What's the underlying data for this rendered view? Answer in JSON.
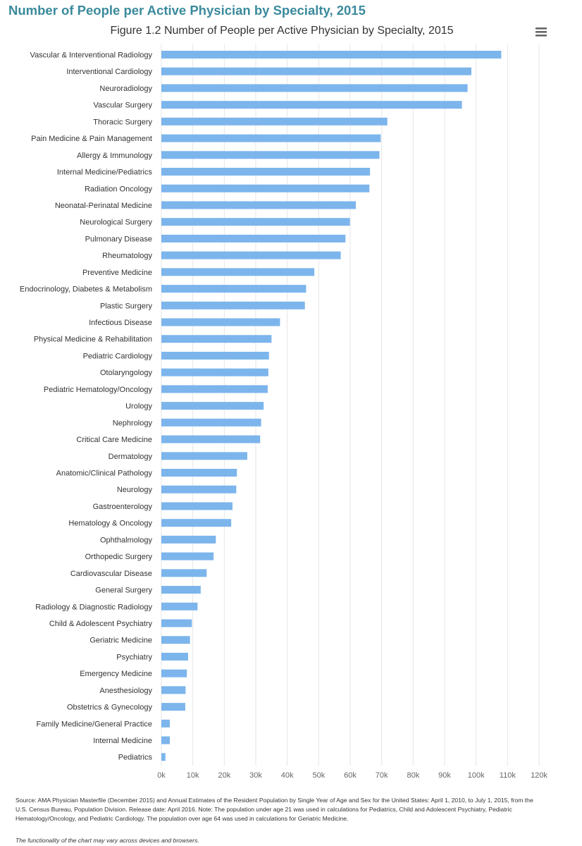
{
  "page": {
    "heading": "Number of People per Active Physician by Specialty, 2015",
    "source_lines": [
      "Source: AMA Physician Masterfile (December 2015) and Annual Estimates of the Resident Population by Single Year of Age and Sex for the United States: April 1, 2010, to July 1, 2015, from the",
      "U.S. Census Bureau, Population Division. Release date: April 2016. Note: The population under age 21 was used in calculations for Pediatrics, Child and Adolescent Psychiatry, Pediatric",
      "Hematology/Oncology, and Pediatric Cardiology. The population over age 64 was used in calculations for Geriatric Medicine."
    ],
    "disclaimer": "The functionality of the chart may vary across devices and browsers.",
    "menu_icon": "hamburger-menu-icon"
  },
  "chart_data": {
    "type": "bar",
    "orientation": "horizontal",
    "title": "Figure 1.2 Number of People per Active Physician by Specialty, 2015",
    "xlim": [
      0,
      120000
    ],
    "ticks": [
      0,
      10000,
      20000,
      30000,
      40000,
      50000,
      60000,
      70000,
      80000,
      90000,
      100000,
      110000,
      120000
    ],
    "tick_labels": [
      "0k",
      "10k",
      "20k",
      "30k",
      "40k",
      "50k",
      "60k",
      "70k",
      "80k",
      "90k",
      "100k",
      "110k",
      "120k"
    ],
    "grid": true,
    "bar_color": "#7cb5ec",
    "grid_color": "#e6e6e6",
    "categories": [
      "Vascular & Interventional Radiology",
      "Interventional Cardiology",
      "Neuroradiology",
      "Vascular Surgery",
      "Thoracic Surgery",
      "Pain Medicine & Pain Management",
      "Allergy & Immunology",
      "Internal Medicine/Pediatrics",
      "Radiation Oncology",
      "Neonatal-Perinatal Medicine",
      "Neurological Surgery",
      "Pulmonary Disease",
      "Rheumatology",
      "Preventive Medicine",
      "Endocrinology, Diabetes & Metabolism",
      "Plastic Surgery",
      "Infectious Disease",
      "Physical Medicine & Rehabilitation",
      "Pediatric Cardiology",
      "Otolaryngology",
      "Pediatric Hematology/Oncology",
      "Urology",
      "Nephrology",
      "Critical Care Medicine",
      "Dermatology",
      "Anatomic/Clinical Pathology",
      "Neurology",
      "Gastroenterology",
      "Hematology & Oncology",
      "Ophthalmology",
      "Orthopedic Surgery",
      "Cardiovascular Disease",
      "General Surgery",
      "Radiology & Diagnostic Radiology",
      "Child & Adolescent Psychiatry",
      "Geriatric Medicine",
      "Psychiatry",
      "Emergency Medicine",
      "Anesthesiology",
      "Obstetrics & Gynecology",
      "Family Medicine/General Practice",
      "Internal Medicine",
      "Pediatrics"
    ],
    "values": [
      108000,
      98500,
      97300,
      95500,
      71800,
      69700,
      69300,
      66300,
      66100,
      61800,
      59900,
      58500,
      57000,
      48600,
      46000,
      45600,
      37700,
      35000,
      34200,
      34000,
      33800,
      32500,
      31700,
      31400,
      27300,
      24000,
      23800,
      22600,
      22200,
      17300,
      16600,
      14400,
      12500,
      11500,
      9700,
      9100,
      8500,
      8100,
      7700,
      7600,
      2700,
      2700,
      1300
    ]
  }
}
